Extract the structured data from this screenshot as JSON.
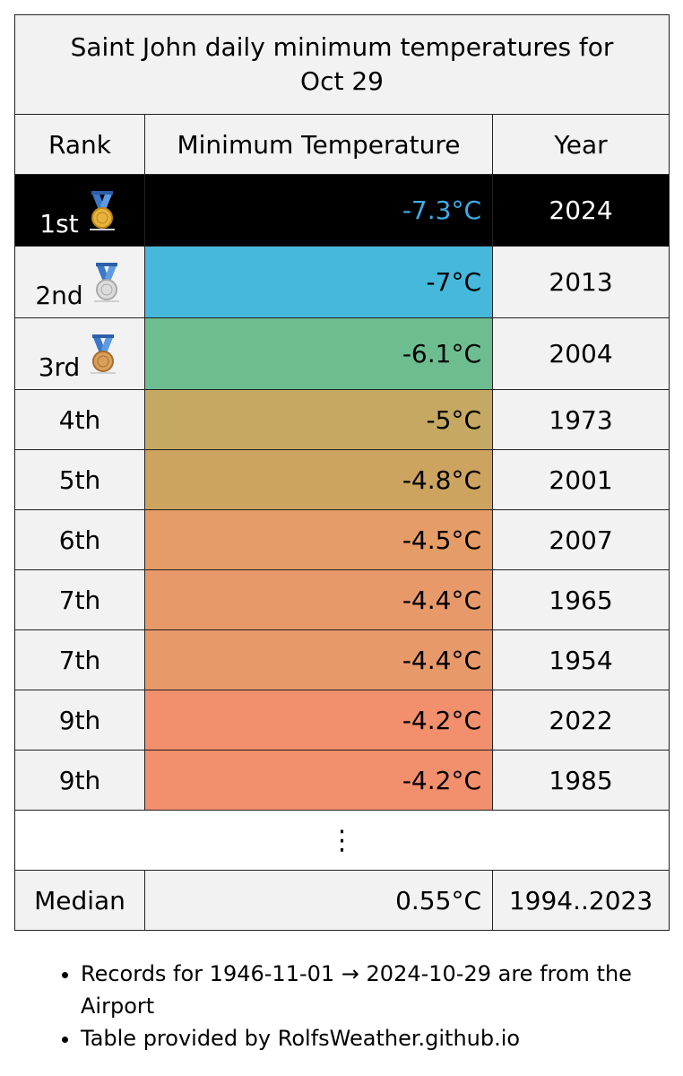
{
  "table": {
    "title": "Saint John daily minimum temperatures for Oct 29",
    "headers": {
      "rank": "Rank",
      "temp": "Minimum Temperature",
      "year": "Year"
    },
    "rows": [
      {
        "rank": "1st",
        "temp": "-7.3°C",
        "year": "2024",
        "color": "#000000",
        "medal": "gold"
      },
      {
        "rank": "2nd",
        "temp": "-7°C",
        "year": "2013",
        "color": "#45b8db",
        "medal": "silver"
      },
      {
        "rank": "3rd",
        "temp": "-6.1°C",
        "year": "2004",
        "color": "#6dbd91",
        "medal": "bronze"
      },
      {
        "rank": "4th",
        "temp": "-5°C",
        "year": "1973",
        "color": "#c5a962"
      },
      {
        "rank": "5th",
        "temp": "-4.8°C",
        "year": "2001",
        "color": "#cca35f"
      },
      {
        "rank": "6th",
        "temp": "-4.5°C",
        "year": "2007",
        "color": "#e59c66"
      },
      {
        "rank": "7th",
        "temp": "-4.4°C",
        "year": "1965",
        "color": "#e7996a"
      },
      {
        "rank": "7th",
        "temp": "-4.4°C",
        "year": "1954",
        "color": "#e7996a"
      },
      {
        "rank": "9th",
        "temp": "-4.2°C",
        "year": "2022",
        "color": "#f28f6c"
      },
      {
        "rank": "9th",
        "temp": "-4.2°C",
        "year": "1985",
        "color": "#f28f6c"
      }
    ],
    "ellipsis": "⋮",
    "median": {
      "label": "Median",
      "value": "0.55°C",
      "period": "1994..2023"
    }
  },
  "notes": [
    "Records for 1946-11-01 → 2024-10-29 are from the Airport",
    "Table provided by RolfsWeather.github.io"
  ]
}
